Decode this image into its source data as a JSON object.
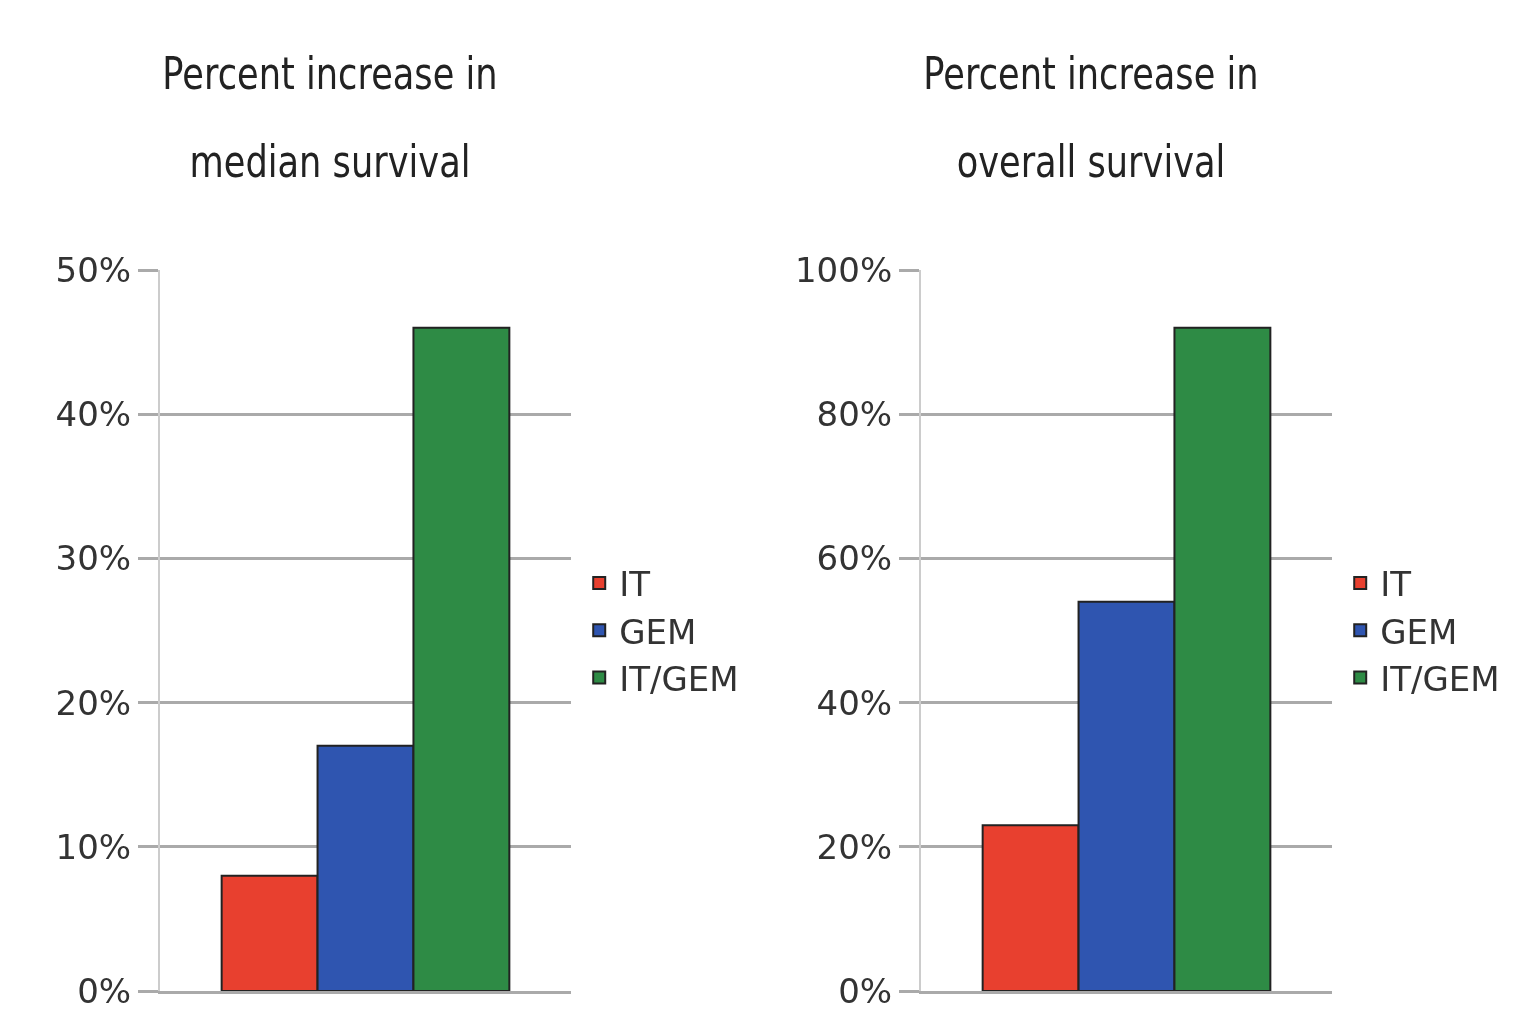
{
  "chart_data": [
    {
      "type": "bar",
      "title": "Percent increase in median survival",
      "categories": [
        null
      ],
      "series": [
        {
          "name": "IT",
          "color": "#e8402f",
          "values": [
            8
          ]
        },
        {
          "name": "GEM",
          "color": "#2f55b0",
          "values": [
            17
          ]
        },
        {
          "name": "IT/GEM",
          "color": "#2e8b45",
          "values": [
            46
          ]
        }
      ],
      "ylim": [
        0,
        50
      ],
      "yticks": [
        {
          "value": 0,
          "label": "0%"
        },
        {
          "value": 10,
          "label": "10%"
        },
        {
          "value": 20,
          "label": "20%"
        },
        {
          "value": 30,
          "label": "30%"
        },
        {
          "value": 40,
          "label": "40%"
        },
        {
          "value": 50,
          "label": "50%"
        }
      ],
      "grid": "y",
      "legend": "right",
      "tick_labels": "y"
    },
    {
      "type": "bar",
      "title": "Percent increase in overall survival",
      "categories": [
        null
      ],
      "series": [
        {
          "name": "IT",
          "color": "#e8402f",
          "values": [
            23
          ]
        },
        {
          "name": "GEM",
          "color": "#2f55b0",
          "values": [
            54
          ]
        },
        {
          "name": "IT/GEM",
          "color": "#2e8b45",
          "values": [
            92
          ]
        }
      ],
      "ylim": [
        0,
        100
      ],
      "yticks": [
        {
          "value": 0,
          "label": "0%"
        },
        {
          "value": 20,
          "label": "20%"
        },
        {
          "value": 40,
          "label": "40%"
        },
        {
          "value": 60,
          "label": "60%"
        },
        {
          "value": 80,
          "label": "80%"
        },
        {
          "value": 100,
          "label": "100%"
        }
      ],
      "grid": "y",
      "legend": "right",
      "tick_labels": "y"
    }
  ]
}
